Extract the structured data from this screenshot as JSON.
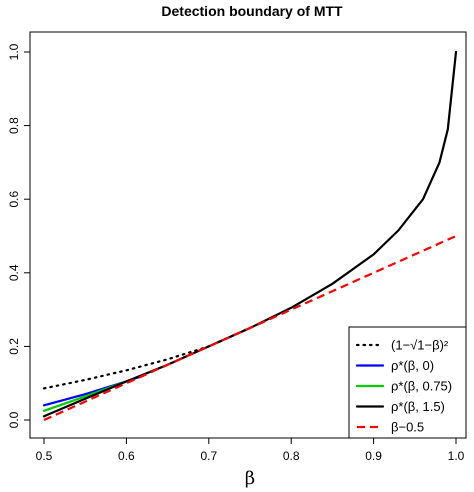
{
  "chart_data": {
    "type": "line",
    "title": "Detection boundary of MTT",
    "xlabel": "β",
    "ylabel": "",
    "xlim": [
      0.5,
      1.0
    ],
    "ylim": [
      0.0,
      1.0
    ],
    "xticks": [
      "0.5",
      "0.6",
      "0.7",
      "0.8",
      "0.9",
      "1.0"
    ],
    "yticks": [
      "0.0",
      "0.2",
      "0.4",
      "0.6",
      "0.8",
      "1.0"
    ],
    "grid": false,
    "legend_position": "bottom-right",
    "series": [
      {
        "name": "(1−√1−β)²",
        "color": "#000000",
        "style": "dotted",
        "x": [
          0.5,
          0.55,
          0.6,
          0.65,
          0.7,
          0.75
        ],
        "y": [
          0.086,
          0.109,
          0.135,
          0.165,
          0.2,
          0.25
        ]
      },
      {
        "name": "ρ*(β, 0)",
        "color": "#0000ff",
        "style": "solid",
        "x": [
          0.5,
          0.55,
          0.6,
          0.62
        ],
        "y": [
          0.04,
          0.07,
          0.105,
          0.12
        ]
      },
      {
        "name": "ρ*(β, 0.75)",
        "color": "#00cc00",
        "style": "solid",
        "x": [
          0.5,
          0.55,
          0.6
        ],
        "y": [
          0.025,
          0.064,
          0.105
        ]
      },
      {
        "name": "ρ*(β, 1.5)",
        "color": "#000000",
        "style": "solid",
        "x": [
          0.5,
          0.55,
          0.6,
          0.65,
          0.7,
          0.75,
          0.8,
          0.85,
          0.9,
          0.93,
          0.96,
          0.98,
          0.99,
          1.0
        ],
        "y": [
          0.01,
          0.058,
          0.105,
          0.15,
          0.2,
          0.25,
          0.305,
          0.37,
          0.45,
          0.515,
          0.6,
          0.7,
          0.79,
          1.0
        ]
      },
      {
        "name": "β−0.5",
        "color": "#ff0000",
        "style": "dashed",
        "x": [
          0.5,
          1.0
        ],
        "y": [
          0.0,
          0.5
        ]
      }
    ]
  }
}
